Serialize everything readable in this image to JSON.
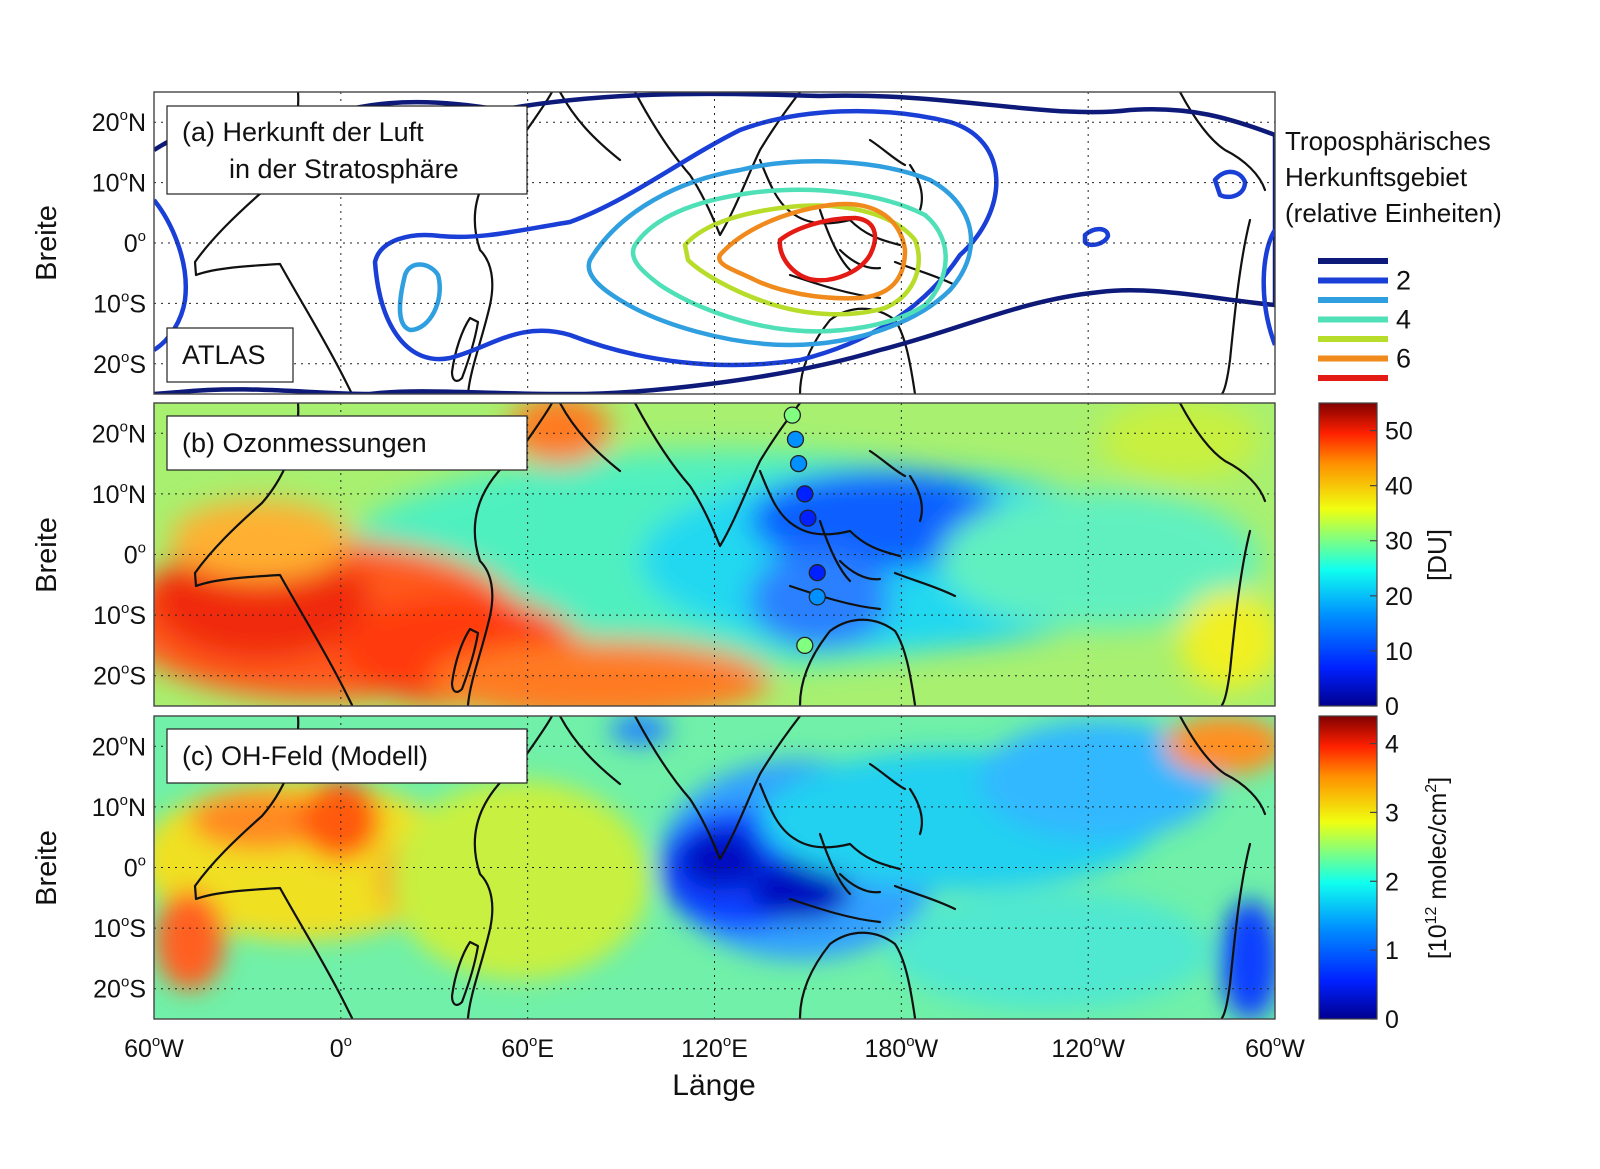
{
  "panels": {
    "a": {
      "label_line1": "(a) Herkunft der Luft",
      "label_line2": "in der Stratosphäre",
      "inset_label": "ATLAS"
    },
    "b": {
      "label": "(b) Ozonmessungen"
    },
    "c": {
      "label": "(c) OH-Feld (Modell)"
    }
  },
  "axes": {
    "ylabel": "Breite",
    "xlabel": "Länge",
    "lat_ticks": [
      {
        "num": "20",
        "dir": "N",
        "lat": 20
      },
      {
        "num": "10",
        "dir": "N",
        "lat": 10
      },
      {
        "num": "0",
        "dir": "",
        "lat": 0
      },
      {
        "num": "10",
        "dir": "S",
        "lat": -10
      },
      {
        "num": "20",
        "dir": "S",
        "lat": -20
      }
    ],
    "lon_ticks": [
      {
        "num": "60",
        "dir": "W",
        "lon": -60
      },
      {
        "num": "0",
        "dir": "",
        "lon": 0
      },
      {
        "num": "60",
        "dir": "E",
        "lon": 60
      },
      {
        "num": "120",
        "dir": "E",
        "lon": 120
      },
      {
        "num": "180",
        "dir": "W",
        "lon": 180
      },
      {
        "num": "120",
        "dir": "W",
        "lon": 240
      },
      {
        "num": "60",
        "dir": "W",
        "lon": 300
      }
    ],
    "lon_range": [
      -60,
      300
    ],
    "lat_range": [
      -25,
      25
    ]
  },
  "legend_a": {
    "title_line1": "Troposphärisches",
    "title_line2": "Herkunftsgebiet",
    "title_line3": "(relative Einheiten)",
    "levels": [
      {
        "value": 1,
        "color": "#0d1a7a",
        "label": ""
      },
      {
        "value": 2,
        "color": "#1a3fd6",
        "label": "2"
      },
      {
        "value": 3,
        "color": "#2f9fe0",
        "label": ""
      },
      {
        "value": 4,
        "color": "#4fe0b8",
        "label": "4"
      },
      {
        "value": 5,
        "color": "#b8dc2a",
        "label": ""
      },
      {
        "value": 6,
        "color": "#f08a1c",
        "label": "6"
      },
      {
        "value": 7,
        "color": "#e41b14",
        "label": ""
      }
    ]
  },
  "colorbar_b": {
    "label": "[DU]",
    "ticks": [
      "0",
      "10",
      "20",
      "30",
      "40",
      "50"
    ],
    "range": [
      0,
      55
    ]
  },
  "colorbar_c": {
    "label_prefix": "[10",
    "label_exp": "12",
    "label_mid": " molec/cm",
    "label_exp2": "2",
    "label_suffix": "]",
    "ticks": [
      "0",
      "1",
      "2",
      "3",
      "4"
    ],
    "range": [
      0,
      4.4
    ]
  },
  "colors": {
    "colormap": [
      "#00008f",
      "#0020ff",
      "#0090ff",
      "#10ffef",
      "#80ff80",
      "#efff10",
      "#ff9000",
      "#ff2000",
      "#800000"
    ],
    "coastline": "#111111"
  },
  "chart_data": [
    {
      "type": "heatmap",
      "title": "(a) Herkunft der Luft in der Stratosphäre",
      "xlabel": "",
      "ylabel": "Breite",
      "contour_levels": [
        1,
        2,
        3,
        4,
        5,
        6,
        7
      ],
      "max_region_center": {
        "lon": 150,
        "lat": 0
      }
    },
    {
      "type": "heatmap",
      "title": "(b) Ozonmessungen",
      "xlabel": "",
      "ylabel": "Breite",
      "unit": "[DU]",
      "zlim": [
        0,
        55
      ],
      "ozonesonde_stations": [
        {
          "lon": 145,
          "lat": 23,
          "value": 25
        },
        {
          "lon": 146,
          "lat": 19,
          "value": 14
        },
        {
          "lon": 147,
          "lat": 15,
          "value": 13
        },
        {
          "lon": 149,
          "lat": 10,
          "value": 6
        },
        {
          "lon": 150,
          "lat": 6,
          "value": 8
        },
        {
          "lon": 153,
          "lat": -3,
          "value": 8
        },
        {
          "lon": 153,
          "lat": -7,
          "value": 13
        },
        {
          "lon": 149,
          "lat": -15,
          "value": 26
        }
      ]
    },
    {
      "type": "heatmap",
      "title": "(c) OH-Feld (Modell)",
      "xlabel": "Länge",
      "ylabel": "Breite",
      "unit": "[10^12 molec/cm^2]",
      "zlim": [
        0,
        4.4
      ]
    }
  ]
}
